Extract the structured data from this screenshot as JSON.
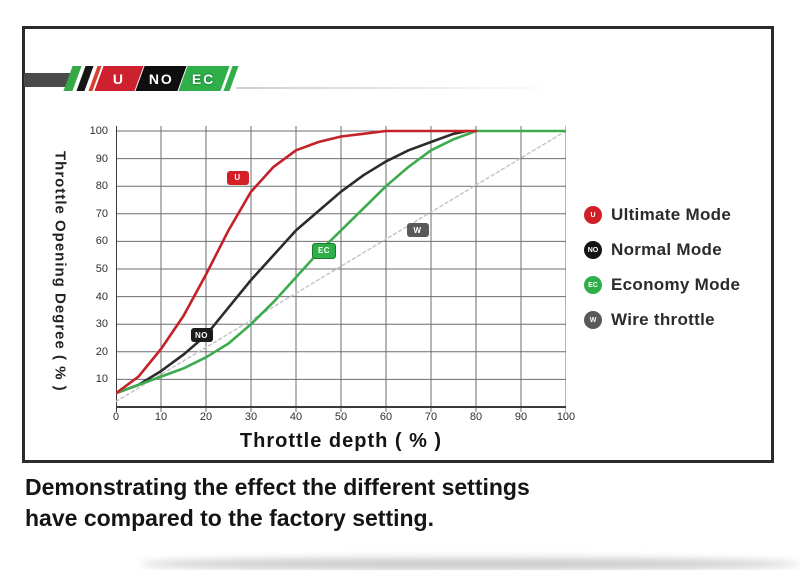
{
  "banner": {
    "segments": [
      {
        "label": "U",
        "color": "#ce2130"
      },
      {
        "label": "NO",
        "color": "#0e0e0e"
      },
      {
        "label": "EC",
        "color": "#2fae4a"
      }
    ]
  },
  "chart_data": {
    "type": "line",
    "title": "",
    "xlabel": "Throttle depth ( % )",
    "ylabel": "Throttle Opening Degree ( % )",
    "xlim": [
      0,
      100
    ],
    "ylim": [
      0,
      100
    ],
    "x_ticks": [
      0,
      10,
      20,
      30,
      40,
      50,
      60,
      70,
      80,
      90,
      100
    ],
    "y_ticks": [
      10,
      20,
      30,
      40,
      50,
      60,
      70,
      80,
      90,
      100
    ],
    "grid": true,
    "legend_position": "right",
    "series": [
      {
        "name": "Wire throttle",
        "color": "#c6c6c6",
        "dashed": true,
        "badge": "W",
        "badge_color": "#595959",
        "badge_at": {
          "x": 67,
          "y": 64
        },
        "points": [
          [
            0,
            2
          ],
          [
            100,
            100
          ]
        ]
      },
      {
        "name": "Normal Mode",
        "color": "#2e2b2b",
        "dashed": false,
        "badge": "NO",
        "badge_color": "#1a1a1a",
        "badge_at": {
          "x": 19,
          "y": 26
        },
        "points": [
          [
            0,
            5
          ],
          [
            5,
            8
          ],
          [
            10,
            13
          ],
          [
            15,
            19
          ],
          [
            20,
            26
          ],
          [
            25,
            36
          ],
          [
            30,
            46
          ],
          [
            35,
            55
          ],
          [
            40,
            64
          ],
          [
            45,
            71
          ],
          [
            50,
            78
          ],
          [
            55,
            84
          ],
          [
            60,
            89
          ],
          [
            65,
            93
          ],
          [
            70,
            96
          ],
          [
            75,
            99
          ],
          [
            78,
            100
          ]
        ]
      },
      {
        "name": "Economy Mode",
        "color": "#3cab4e",
        "dashed": false,
        "badge": "EC",
        "badge_color": "#2fae4a",
        "badge_at": {
          "x": 46,
          "y": 57
        },
        "points": [
          [
            0,
            5
          ],
          [
            5,
            8
          ],
          [
            10,
            11
          ],
          [
            15,
            14
          ],
          [
            20,
            18
          ],
          [
            25,
            23
          ],
          [
            30,
            30
          ],
          [
            35,
            38
          ],
          [
            40,
            47
          ],
          [
            45,
            56
          ],
          [
            50,
            64
          ],
          [
            55,
            72
          ],
          [
            60,
            80
          ],
          [
            65,
            87
          ],
          [
            70,
            93
          ],
          [
            75,
            97
          ],
          [
            80,
            100
          ],
          [
            90,
            100
          ],
          [
            100,
            100
          ]
        ]
      },
      {
        "name": "Ultimate Mode",
        "color": "#c42128",
        "dashed": false,
        "badge": "U",
        "badge_color": "#d42027",
        "badge_at": {
          "x": 27,
          "y": 83
        },
        "points": [
          [
            0,
            5
          ],
          [
            5,
            11
          ],
          [
            10,
            21
          ],
          [
            15,
            33
          ],
          [
            20,
            48
          ],
          [
            25,
            64
          ],
          [
            30,
            78
          ],
          [
            35,
            87
          ],
          [
            40,
            93
          ],
          [
            45,
            96
          ],
          [
            50,
            98
          ],
          [
            55,
            99
          ],
          [
            60,
            100
          ],
          [
            70,
            100
          ],
          [
            80,
            100
          ]
        ]
      }
    ],
    "legend": [
      {
        "glyph": "U",
        "color": "#d01f27",
        "label": "Ultimate Mode"
      },
      {
        "glyph": "NO",
        "color": "#141414",
        "label": "Normal Mode"
      },
      {
        "glyph": "EC",
        "color": "#2fae4a",
        "label": "Economy Mode"
      },
      {
        "glyph": "W",
        "color": "#595959",
        "label": "Wire throttle"
      }
    ]
  },
  "caption": {
    "line1": "Demonstrating the effect the different settings",
    "line2": "have compared to the factory setting."
  }
}
